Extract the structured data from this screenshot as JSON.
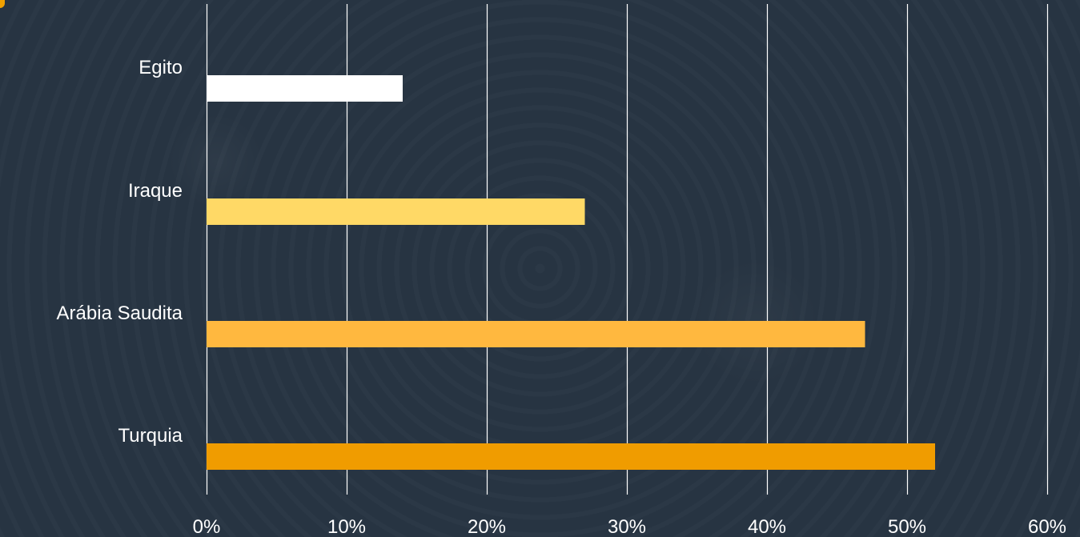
{
  "chart_data": {
    "type": "bar",
    "orientation": "horizontal",
    "categories": [
      "Egito",
      "Iraque",
      "Arábia Saudita",
      "Turquia"
    ],
    "values": [
      0.14,
      0.27,
      0.47,
      0.52
    ],
    "colors": [
      "#ffffff",
      "#ffd966",
      "#ffb83f",
      "#f09c00"
    ],
    "xlim": [
      0,
      0.6
    ],
    "ticks": [
      0,
      0.1,
      0.2,
      0.3,
      0.4,
      0.5,
      0.6
    ],
    "tick_labels": [
      "0%",
      "10%",
      "20%",
      "30%",
      "40%",
      "50%",
      "60%"
    ],
    "grid": true,
    "gridline_color": "#ffffff",
    "background_color": "#273442",
    "label_color": "#ffffff",
    "title": "",
    "xlabel": "",
    "ylabel": ""
  }
}
